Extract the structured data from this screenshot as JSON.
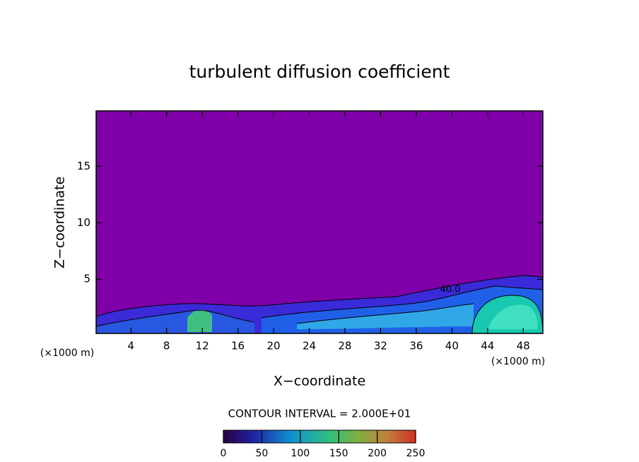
{
  "chart_data": {
    "type": "contour",
    "title": "turbulent diffusion coefficient",
    "xlabel": "X−coordinate",
    "ylabel": "Z−coordinate",
    "x_unit_labels": [
      "(×1000 m)",
      "(×1000 m)"
    ],
    "xlim": [
      0.1,
      50.2
    ],
    "ylim": [
      0.2,
      19.9
    ],
    "xticks": [
      4,
      8,
      12,
      16,
      20,
      24,
      28,
      32,
      36,
      40,
      44,
      48
    ],
    "yticks": [
      5,
      10,
      15
    ],
    "annotations": [
      "40.0"
    ],
    "contour_interval_label": "CONTOUR INTERVAL = 2.000E+01",
    "clim": [
      0,
      250
    ],
    "cticks": [
      0,
      50,
      100,
      150,
      200,
      250
    ]
  }
}
